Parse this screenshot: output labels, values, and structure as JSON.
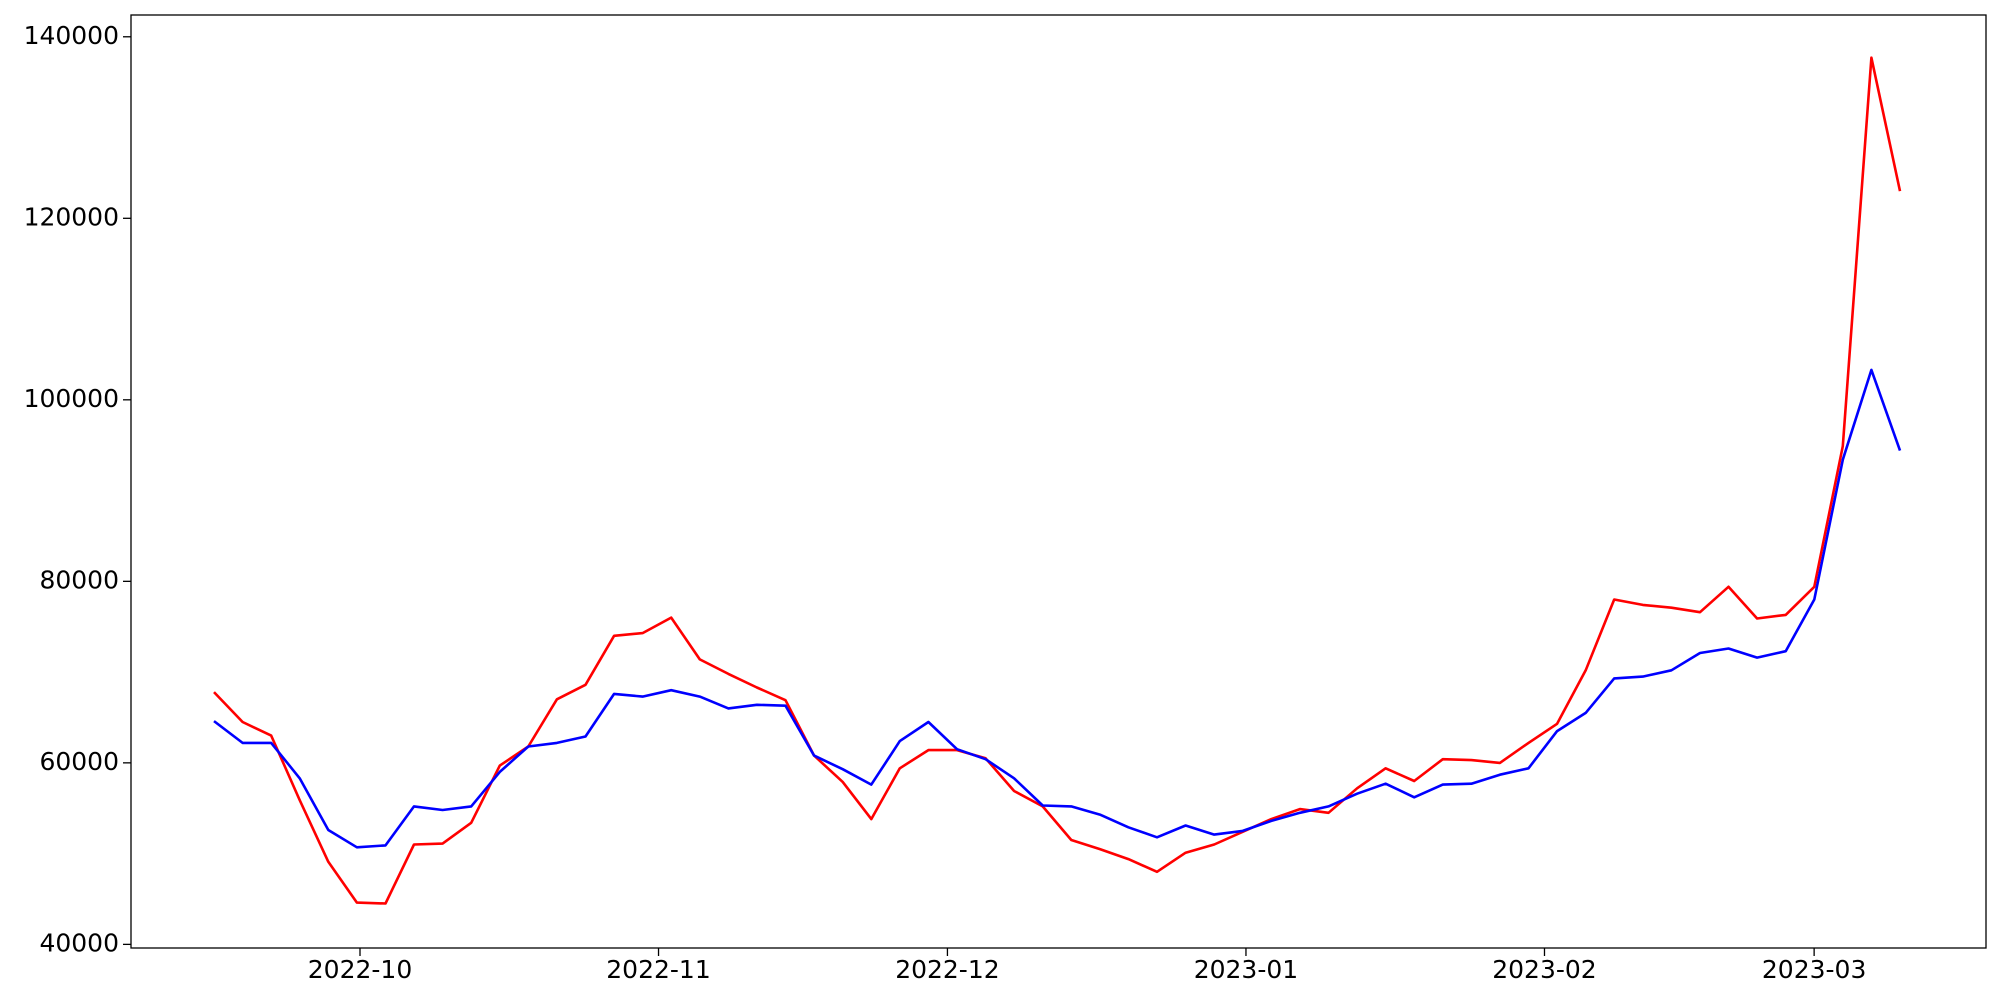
{
  "chart_data": {
    "type": "line",
    "series": [
      {
        "color": "#ff0000",
        "values": [
          67800,
          64500,
          63000,
          55900,
          49100,
          44600,
          44500,
          51000,
          51100,
          53400,
          59700,
          61800,
          67000,
          68600,
          74000,
          74300,
          76000,
          71400,
          69800,
          68300,
          66900,
          60800,
          57900,
          53800,
          59400,
          61400,
          61400,
          60500,
          56900,
          55200,
          51500,
          50500,
          49400,
          48000,
          50100,
          51000,
          52400,
          53800,
          54900,
          54500,
          57200,
          59400,
          58000,
          60400,
          60300,
          60000,
          62200,
          64300,
          70200,
          78000,
          77400,
          77100,
          76600,
          79400,
          75900,
          76300,
          79400,
          94900,
          137700,
          123000
        ]
      },
      {
        "color": "#0000ff",
        "values": [
          64600,
          62200,
          62200,
          58300,
          52600,
          50700,
          50900,
          55200,
          54800,
          55200,
          59000,
          61800,
          62200,
          62900,
          67600,
          67300,
          68000,
          67300,
          66000,
          66400,
          66300,
          60800,
          59300,
          57600,
          62400,
          64500,
          61500,
          60400,
          58300,
          55300,
          55200,
          54300,
          52900,
          51800,
          53100,
          52100,
          52500,
          53600,
          54500,
          55200,
          56600,
          57700,
          56200,
          57600,
          57700,
          58700,
          59400,
          63500,
          65500,
          69300,
          69500,
          70200,
          72100,
          72600,
          71600,
          72300,
          78000,
          93400,
          103300,
          94400
        ]
      }
    ],
    "xticks": [
      "2022-10",
      "2022-11",
      "2022-12",
      "2023-01",
      "2023-02",
      "2023-03"
    ],
    "ylim": [
      39600,
      142400
    ],
    "yticks": [
      40000,
      60000,
      80000,
      100000,
      120000,
      140000
    ]
  }
}
